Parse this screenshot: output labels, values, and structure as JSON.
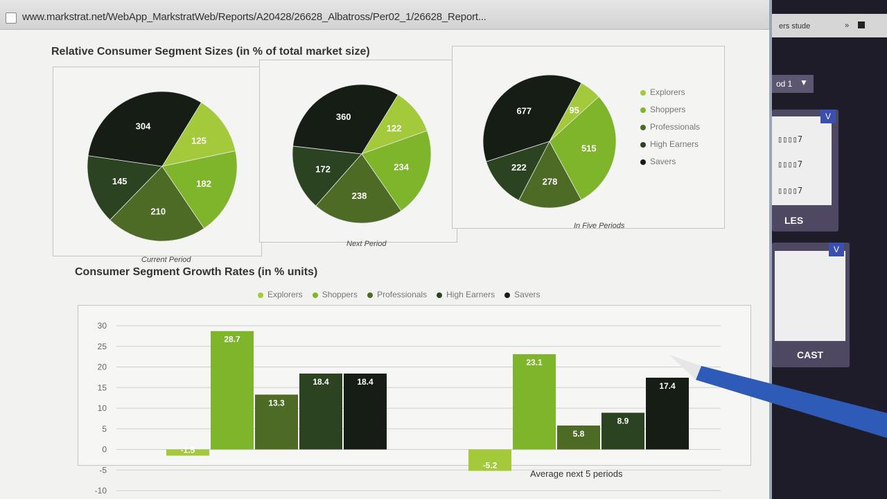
{
  "browser": {
    "url": "www.markstrat.net/WebApp_MarkstratWeb/Reports/A20428/26628_Albatross/Per02_1/26628_Report..."
  },
  "right_panel": {
    "tab_title": "ers stude",
    "tab_close": "»",
    "dropdown_value": "od 1",
    "dropdown_arrow": "▼",
    "card1_badge": "V",
    "card1_rows": [
      "▯▯▯▯7",
      "▯▯▯▯7",
      "▯▯▯▯7"
    ],
    "card1_label": "LES",
    "card2_badge": "V",
    "card2_label": "CAST"
  },
  "colors": {
    "Explorers": "#a4c93a",
    "Shoppers": "#7fb52b",
    "Professionals": "#4d6b25",
    "High Earners": "#2c4321",
    "Savers": "#161d14"
  },
  "sections": {
    "pies_title": "Relative Consumer Segment Sizes (in % of total market size)",
    "bars_title": "Consumer Segment Growth Rates (in % units)"
  },
  "chart_data": [
    {
      "type": "pie",
      "caption": "Current Period",
      "labels": [
        "Explorers",
        "Shoppers",
        "Professionals",
        "High Earners",
        "Savers"
      ],
      "values": [
        125,
        182,
        210,
        145,
        304
      ]
    },
    {
      "type": "pie",
      "caption": "Next Period",
      "labels": [
        "Explorers",
        "Shoppers",
        "Professionals",
        "High Earners",
        "Savers"
      ],
      "values": [
        122,
        234,
        238,
        172,
        360
      ]
    },
    {
      "type": "pie",
      "caption": "In Five Periods",
      "labels": [
        "Explorers",
        "Shoppers",
        "Professionals",
        "High Earners",
        "Savers"
      ],
      "values": [
        95,
        515,
        278,
        222,
        677
      ],
      "legend": [
        "Explorers",
        "Shoppers",
        "Professionals",
        "High Earners",
        "Savers"
      ],
      "legend_position": "right"
    },
    {
      "type": "bar",
      "title": "Consumer Segment Growth Rates (in % units)",
      "categories": [
        "",
        "Average next 5 periods"
      ],
      "series": [
        {
          "name": "Explorers",
          "values": [
            -1.5,
            -5.2
          ]
        },
        {
          "name": "Shoppers",
          "values": [
            28.7,
            23.1
          ]
        },
        {
          "name": "Professionals",
          "values": [
            13.3,
            5.8
          ]
        },
        {
          "name": "High Earners",
          "values": [
            18.4,
            8.9
          ]
        },
        {
          "name": "Savers",
          "values": [
            18.4,
            17.4
          ]
        }
      ],
      "yticks": [
        30,
        25,
        20,
        15,
        10,
        5,
        0,
        -5,
        -10
      ],
      "ylim": [
        -10,
        30
      ],
      "grid": true,
      "legend_position": "top"
    }
  ]
}
